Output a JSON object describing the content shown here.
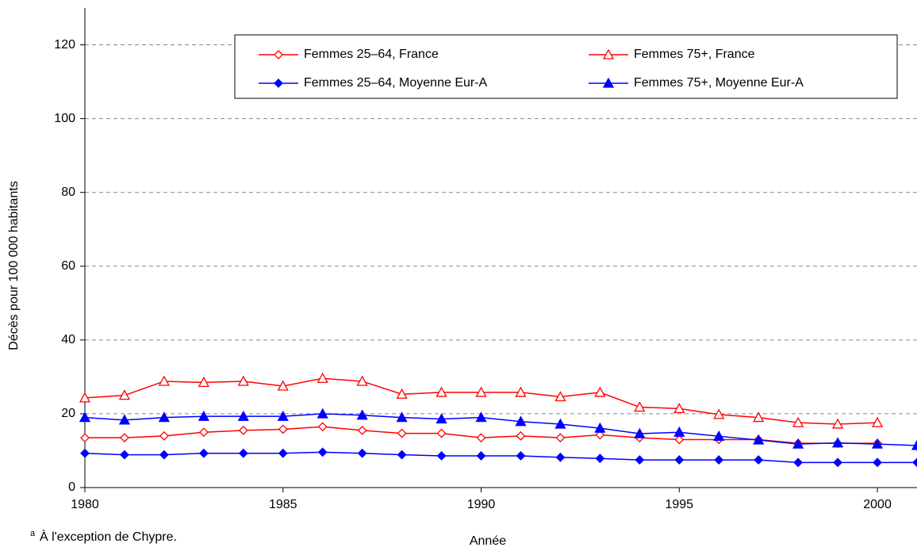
{
  "chart_data": {
    "type": "line",
    "x_label": "Année",
    "y_label": "Décès pour 100 000 habitants",
    "footnote": {
      "marker": "a",
      "text": "À l'exception de Chypre."
    },
    "x": [
      1980,
      1981,
      1982,
      1983,
      1984,
      1985,
      1986,
      1987,
      1988,
      1989,
      1990,
      1991,
      1992,
      1993,
      1994,
      1995,
      1996,
      1997,
      1998,
      1999,
      2000,
      2001
    ],
    "xlim": [
      1980,
      2001
    ],
    "xticks": [
      1980,
      1985,
      1990,
      1995,
      2000
    ],
    "ylim": [
      0,
      130
    ],
    "yticks": [
      0,
      20,
      40,
      60,
      80,
      100,
      120
    ],
    "grid": true,
    "series": [
      {
        "name": "Femmes 25–64, France",
        "color": "#ff0000",
        "marker": "diamond",
        "open": true,
        "values": [
          13.5,
          13.5,
          14,
          15,
          15.5,
          15.8,
          16.5,
          15.5,
          14.7,
          14.7,
          13.5,
          14,
          13.5,
          14.3,
          13.5,
          13,
          13,
          13,
          12,
          12,
          12,
          null
        ]
      },
      {
        "name": "Femmes 75+, France",
        "color": "#ff0000",
        "marker": "triangle",
        "open": true,
        "values": [
          24.3,
          25,
          28.8,
          28.5,
          28.8,
          27.5,
          29.6,
          28.8,
          25.3,
          25.8,
          25.8,
          25.8,
          24.6,
          25.8,
          21.8,
          21.4,
          19.8,
          19,
          17.6,
          17.2,
          17.6,
          null
        ]
      },
      {
        "name": "Femmes 25–64, Moyenne Eur-A",
        "color": "#0000ff",
        "marker": "diamond",
        "open": false,
        "values": [
          9.3,
          8.9,
          8.9,
          9.3,
          9.3,
          9.3,
          9.6,
          9.3,
          8.9,
          8.6,
          8.6,
          8.6,
          8.2,
          7.9,
          7.5,
          7.5,
          7.5,
          7.5,
          6.8,
          6.8,
          6.8,
          6.8
        ]
      },
      {
        "name": "Femmes 75+, Moyenne Eur-A",
        "color": "#0000ff",
        "marker": "triangle",
        "open": false,
        "values": [
          19,
          18.3,
          19,
          19.3,
          19.3,
          19.3,
          20,
          19.6,
          19,
          18.6,
          19,
          17.9,
          17.2,
          16.1,
          14.6,
          15,
          13.9,
          12.9,
          11.8,
          12.1,
          11.8,
          11.4
        ]
      }
    ]
  }
}
